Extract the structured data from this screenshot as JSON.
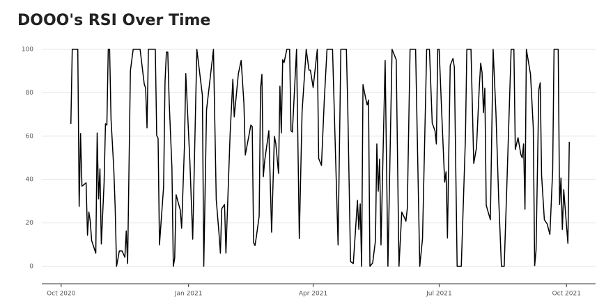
{
  "chart_data": {
    "type": "line",
    "title": "DOOO's RSI Over Time",
    "color": "#000000",
    "grid": true,
    "x": [
      "2020-10-08",
      "2020-10-09",
      "2020-10-13",
      "2020-10-14",
      "2020-10-15",
      "2020-10-16",
      "2020-10-19",
      "2020-10-20",
      "2020-10-21",
      "2020-10-22",
      "2020-10-23",
      "2020-10-26",
      "2020-10-27",
      "2020-10-28",
      "2020-10-29",
      "2020-10-30",
      "2020-11-01",
      "2020-11-02",
      "2020-11-03",
      "2020-11-04",
      "2020-11-05",
      "2020-11-06",
      "2020-11-08",
      "2020-11-09",
      "2020-11-10",
      "2020-11-12",
      "2020-11-14",
      "2020-11-16",
      "2020-11-17",
      "2020-11-18",
      "2020-11-20",
      "2020-11-22",
      "2020-11-27",
      "2020-11-30",
      "2020-12-01",
      "2020-12-02",
      "2020-12-03",
      "2020-12-08",
      "2020-12-09",
      "2020-12-10",
      "2020-12-11",
      "2020-12-14",
      "2020-12-15",
      "2020-12-16",
      "2020-12-17",
      "2020-12-18",
      "2020-12-20",
      "2020-12-21",
      "2020-12-22",
      "2020-12-23",
      "2020-12-26",
      "2020-12-27",
      "2020-12-29",
      "2020-12-30",
      "2021-01-02",
      "2021-01-04",
      "2021-01-07",
      "2021-01-11",
      "2021-01-12",
      "2021-01-14",
      "2021-01-19",
      "2021-01-21",
      "2021-01-23",
      "2021-01-24",
      "2021-01-25",
      "2021-01-27",
      "2021-01-28",
      "2021-01-31",
      "2021-02-02",
      "2021-02-03",
      "2021-02-06",
      "2021-02-08",
      "2021-02-10",
      "2021-02-11",
      "2021-02-15",
      "2021-02-16",
      "2021-02-17",
      "2021-02-18",
      "2021-02-19",
      "2021-02-21",
      "2021-02-22",
      "2021-02-23",
      "2021-02-24",
      "2021-02-25",
      "2021-02-28",
      "2021-03-02",
      "2021-03-04",
      "2021-03-05",
      "2021-03-07",
      "2021-03-08",
      "2021-03-09",
      "2021-03-10",
      "2021-03-11",
      "2021-03-13",
      "2021-03-15",
      "2021-03-16",
      "2021-03-17",
      "2021-03-20",
      "2021-03-22",
      "2021-03-24",
      "2021-03-27",
      "2021-03-29",
      "2021-03-30",
      "2021-04-01",
      "2021-04-04",
      "2021-04-05",
      "2021-04-07",
      "2021-04-09",
      "2021-04-11",
      "2021-04-15",
      "2021-04-19",
      "2021-04-21",
      "2021-04-25",
      "2021-04-26",
      "2021-04-28",
      "2021-04-30",
      "2021-05-03",
      "2021-05-04",
      "2021-05-05",
      "2021-05-06",
      "2021-05-07",
      "2021-05-09",
      "2021-05-10",
      "2021-05-11",
      "2021-05-12",
      "2021-05-14",
      "2021-05-16",
      "2021-05-17",
      "2021-05-18",
      "2021-05-19",
      "2021-05-20",
      "2021-05-23",
      "2021-05-25",
      "2021-05-28",
      "2021-05-31",
      "2021-06-02",
      "2021-06-04",
      "2021-06-06",
      "2021-06-07",
      "2021-06-08",
      "2021-06-10",
      "2021-06-14",
      "2021-06-17",
      "2021-06-19",
      "2021-06-22",
      "2021-06-24",
      "2021-06-26",
      "2021-06-28",
      "2021-06-29",
      "2021-06-30",
      "2021-07-01",
      "2021-07-03",
      "2021-07-05",
      "2021-07-06",
      "2021-07-07",
      "2021-07-09",
      "2021-07-11",
      "2021-07-12",
      "2021-07-14",
      "2021-07-17",
      "2021-07-20",
      "2021-07-21",
      "2021-07-24",
      "2021-07-26",
      "2021-07-28",
      "2021-07-30",
      "2021-07-31",
      "2021-08-01",
      "2021-08-02",
      "2021-08-03",
      "2021-08-04",
      "2021-08-07",
      "2021-08-09",
      "2021-08-11",
      "2021-08-13",
      "2021-08-15",
      "2021-08-17",
      "2021-08-19",
      "2021-08-22",
      "2021-08-24",
      "2021-08-25",
      "2021-08-27",
      "2021-08-29",
      "2021-08-30",
      "2021-08-31",
      "2021-09-01",
      "2021-09-02",
      "2021-09-05",
      "2021-09-07",
      "2021-09-08",
      "2021-09-09",
      "2021-09-11",
      "2021-09-12",
      "2021-09-13",
      "2021-09-15",
      "2021-09-17",
      "2021-09-19",
      "2021-09-21",
      "2021-09-22",
      "2021-09-25",
      "2021-09-26",
      "2021-09-27",
      "2021-09-28",
      "2021-09-29",
      "2021-10-02",
      "2021-10-03"
    ],
    "values": [
      65.7,
      100,
      100,
      27.6,
      61.2,
      36.9,
      38.5,
      14.4,
      25.0,
      20.8,
      11.9,
      6.1,
      61.5,
      31.1,
      44.9,
      10.3,
      38.5,
      65.7,
      65.1,
      100,
      100,
      67.9,
      44.9,
      26.9,
      0,
      7.1,
      7.1,
      4.2,
      16.3,
      1.3,
      90.1,
      100,
      100,
      84.0,
      82.1,
      63.8,
      100,
      100,
      60.3,
      59.0,
      9.9,
      36.9,
      84.9,
      98.7,
      98.7,
      76.0,
      45.5,
      0,
      3.8,
      33.0,
      26.0,
      17.6,
      54.8,
      88.8,
      47.8,
      12.5,
      100,
      78.8,
      0,
      72.1,
      100,
      30.8,
      15.1,
      6.1,
      26.6,
      28.5,
      6.1,
      60.6,
      86.2,
      68.9,
      88.8,
      94.9,
      75.0,
      51.3,
      65.1,
      64.4,
      10.9,
      9.6,
      13.8,
      23.1,
      82.1,
      88.5,
      41.3,
      48.7,
      62.5,
      15.7,
      59.9,
      56.7,
      42.9,
      83.0,
      61.5,
      95.2,
      93.9,
      100,
      100,
      62.5,
      61.9,
      100,
      12.8,
      71.2,
      100,
      90.4,
      90.4,
      82.4,
      100,
      49.7,
      46.5,
      76.0,
      100,
      100,
      9.9,
      100,
      100,
      73.4,
      2.2,
      1.3,
      30.4,
      17.0,
      28.8,
      0,
      83.7,
      77.2,
      74.4,
      76.6,
      0,
      1.6,
      11.9,
      56.4,
      34.6,
      49.4,
      9.9,
      94.9,
      0,
      100,
      95.2,
      0,
      25.0,
      22.4,
      20.8,
      26.6,
      100,
      100,
      0,
      12.8,
      100,
      100,
      66.0,
      62.5,
      56.4,
      100,
      100,
      68.6,
      38.8,
      43.6,
      13.1,
      92.6,
      95.8,
      91.7,
      0,
      0,
      59.3,
      100,
      100,
      47.4,
      54.8,
      82.7,
      93.6,
      89.4,
      70.8,
      82.1,
      28.2,
      21.5,
      100,
      71.2,
      31.4,
      0,
      0,
      39.1,
      100,
      100,
      53.8,
      59.3,
      51.6,
      50.0,
      56.4,
      26.3,
      100,
      88.5,
      63.8,
      0.3,
      7.4,
      81.4,
      84.6,
      42.0,
      21.5,
      19.6,
      14.7,
      44.2,
      100,
      100,
      28.5,
      40.7,
      17.0,
      35.3,
      10.6,
      57.4
    ],
    "xlim": [
      "2020-09-17",
      "2021-10-22"
    ],
    "xticks": [
      {
        "value": "2020-10-01",
        "label": "Oct 2020"
      },
      {
        "value": "2021-01-01",
        "label": "Jan 2021"
      },
      {
        "value": "2021-04-01",
        "label": "Apr 2021"
      },
      {
        "value": "2021-07-01",
        "label": "Jul 2021"
      },
      {
        "value": "2021-10-01",
        "label": "Oct 2021"
      }
    ],
    "ylim": [
      -8,
      103.5
    ],
    "yticks": [
      0,
      20,
      40,
      60,
      80,
      100
    ]
  }
}
